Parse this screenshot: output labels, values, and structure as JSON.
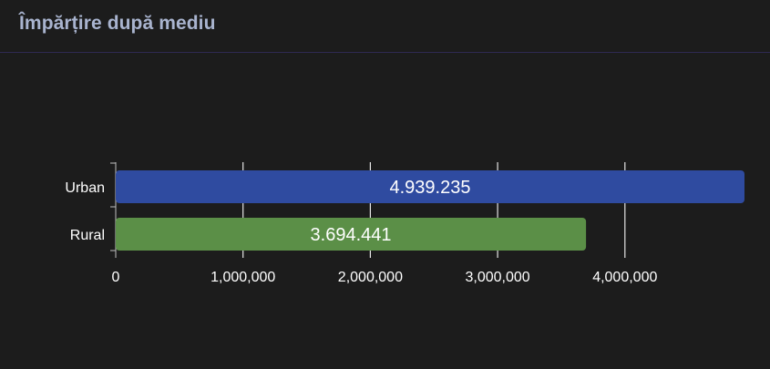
{
  "panel": {
    "title": "Împărțire după mediu"
  },
  "chart_data": {
    "type": "bar",
    "orientation": "horizontal",
    "categories": [
      "Urban",
      "Rural"
    ],
    "values": [
      4939235,
      3694441
    ],
    "value_labels": [
      "4.939.235",
      "3.694.441"
    ],
    "colors": [
      "#2f4ba0",
      "#5b8f47"
    ],
    "xlim": [
      0,
      4939235
    ],
    "xticks": [
      0,
      1000000,
      2000000,
      3000000,
      4000000
    ],
    "xtick_labels": [
      "0",
      "1,000,000",
      "2,000,000",
      "3,000,000",
      "4,000,000"
    ],
    "grid": true,
    "title": "",
    "xlabel": "",
    "ylabel": ""
  }
}
